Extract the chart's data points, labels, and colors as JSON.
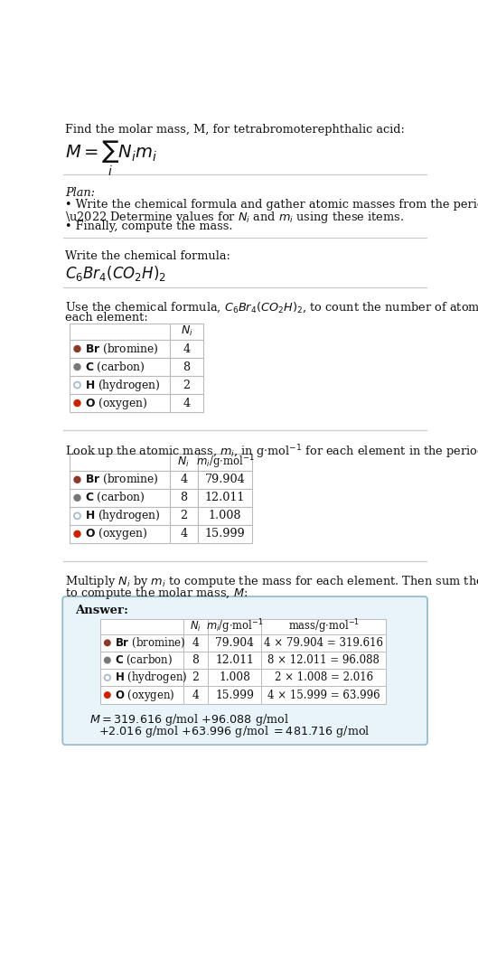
{
  "title_line": "Find the molar mass, M, for tetrabromoterephthalic acid:",
  "elements": [
    {
      "symbol": "Br",
      "name": "bromine",
      "color": "#8B3A2A",
      "filled": true,
      "Ni": 4,
      "mi": "79.904",
      "mass_str": "4 × 79.904 = 319.616"
    },
    {
      "symbol": "C",
      "name": "carbon",
      "color": "#777777",
      "filled": true,
      "Ni": 8,
      "mi": "12.011",
      "mass_str": "8 × 12.011 = 96.088"
    },
    {
      "symbol": "H",
      "name": "hydrogen",
      "color": "#aabbcc",
      "filled": false,
      "Ni": 2,
      "mi": "1.008",
      "mass_str": "2 × 1.008 = 2.016"
    },
    {
      "symbol": "O",
      "name": "oxygen",
      "color": "#cc2200",
      "filled": true,
      "Ni": 4,
      "mi": "15.999",
      "mass_str": "4 × 15.999 = 63.996"
    }
  ],
  "bg_color": "#ffffff",
  "answer_bg": "#e8f4fa",
  "answer_border": "#99bbcc",
  "table_border": "#bbbbbb",
  "text_color": "#111111",
  "sep_color": "#cccccc"
}
